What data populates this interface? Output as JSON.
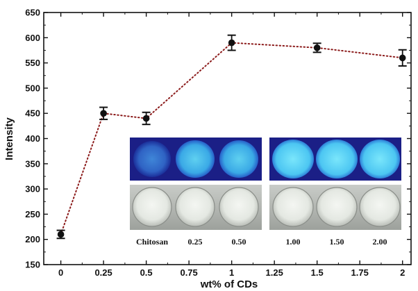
{
  "chart_data": {
    "type": "scatter",
    "xlabel": "wt% of CDs",
    "ylabel": "Intensity",
    "xlim": [
      -0.1,
      2.05
    ],
    "ylim": [
      150,
      650
    ],
    "x_ticks": [
      0,
      0.25,
      0.5,
      0.75,
      1,
      1.25,
      1.5,
      1.75,
      2
    ],
    "x_tick_labels": [
      "0",
      "0.25",
      "0.5",
      "0.75",
      "1",
      "1.25",
      "1.5",
      "1.75",
      "2"
    ],
    "y_ticks": [
      150,
      200,
      250,
      300,
      350,
      400,
      450,
      500,
      550,
      600,
      650
    ],
    "y_tick_labels": [
      "150",
      "200",
      "250",
      "300",
      "350",
      "400",
      "450",
      "500",
      "550",
      "600",
      "650"
    ],
    "grid": false,
    "series": [
      {
        "x": [
          0,
          0.25,
          0.5,
          1,
          1.5,
          2
        ],
        "y": [
          210,
          450,
          440,
          590,
          580,
          560
        ],
        "err": [
          8,
          12,
          12,
          15,
          9,
          16
        ],
        "marker": "circle",
        "line": "dotted",
        "color": "#111111",
        "line_color": "#8b1a1a"
      }
    ],
    "inset": {
      "labels": [
        "Chitosan",
        "0.25",
        "0.50",
        "1.00",
        "1.50",
        "2.00"
      ]
    }
  }
}
